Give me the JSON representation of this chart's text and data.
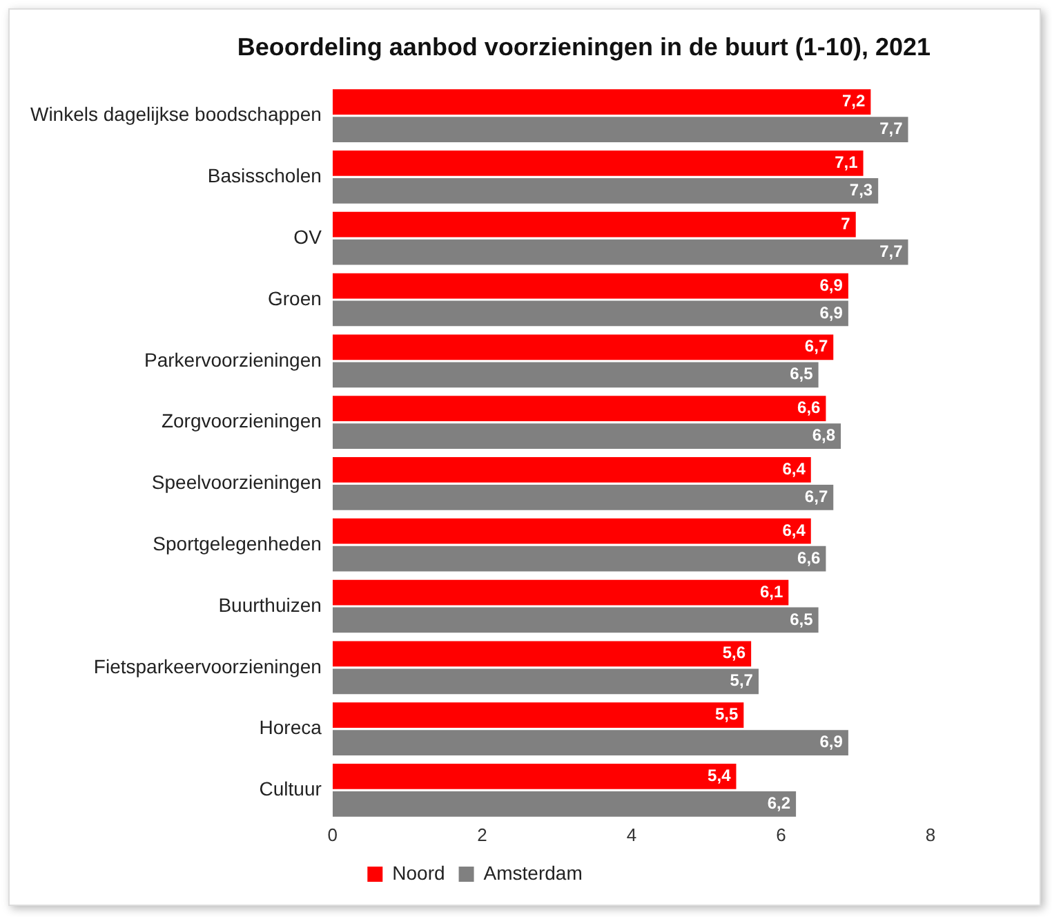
{
  "chart_data": {
    "type": "bar",
    "orientation": "horizontal",
    "title": "Beoordeling aanbod voorzieningen in de buurt (1-10), 2021",
    "categories": [
      "Winkels dagelijkse boodschappen",
      "Basisscholen",
      "OV",
      "Groen",
      "Parkervoorzieningen",
      "Zorgvoorzieningen",
      "Speelvoorzieningen",
      "Sportgelegenheden",
      "Buurthuizen",
      "Fietsparkeervoorzieningen",
      "Horeca",
      "Cultuur"
    ],
    "series": [
      {
        "name": "Noord",
        "color": "#ff0000",
        "values": [
          7.2,
          7.1,
          7,
          6.9,
          6.7,
          6.6,
          6.4,
          6.4,
          6.1,
          5.6,
          5.5,
          5.4
        ],
        "value_labels": [
          "7,2",
          "7,1",
          "7",
          "6,9",
          "6,7",
          "6,6",
          "6,4",
          "6,4",
          "6,1",
          "5,6",
          "5,5",
          "5,4"
        ]
      },
      {
        "name": "Amsterdam",
        "color": "#808080",
        "values": [
          7.7,
          7.3,
          7.7,
          6.9,
          6.5,
          6.8,
          6.7,
          6.6,
          6.5,
          5.7,
          6.9,
          6.2
        ],
        "value_labels": [
          "7,7",
          "7,3",
          "7,7",
          "6,9",
          "6,5",
          "6,8",
          "6,7",
          "6,6",
          "6,5",
          "5,7",
          "6,9",
          "6,2"
        ]
      }
    ],
    "xlim": [
      0,
      8
    ],
    "xticks": [
      0,
      2,
      4,
      6,
      8
    ],
    "grid": false,
    "legend": "bottom"
  }
}
